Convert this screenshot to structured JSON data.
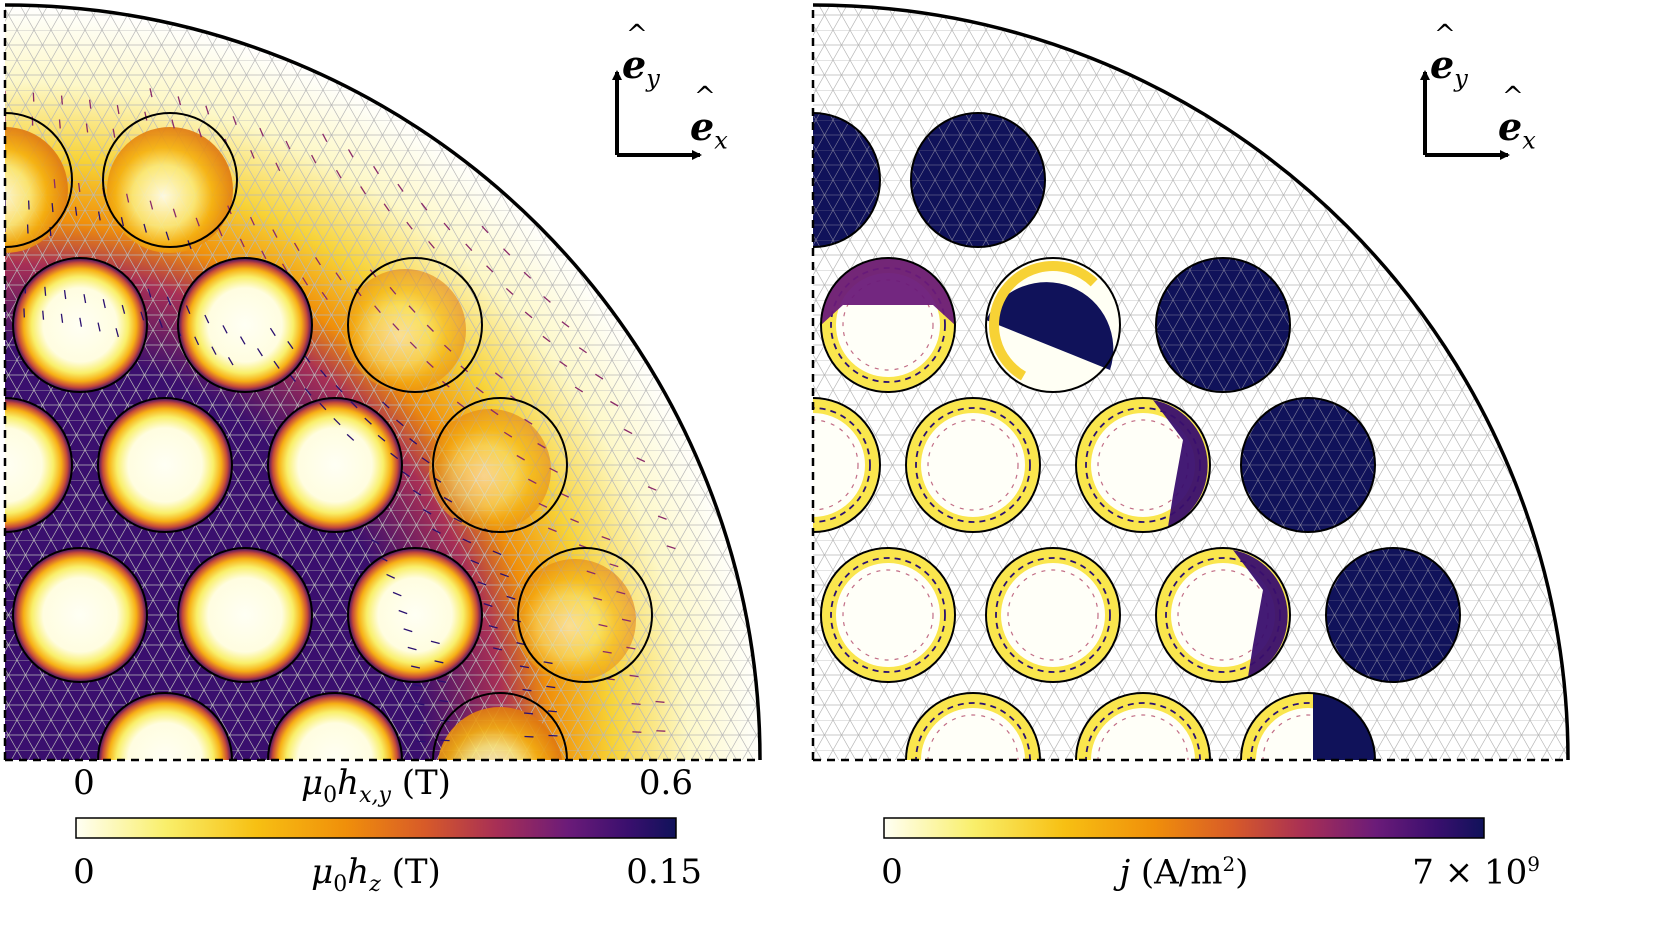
{
  "panels": [
    {
      "id": "left",
      "axis_labels": {
        "x_letter": "e",
        "x_sub": "x",
        "y_letter": "e",
        "y_sub": "y"
      }
    },
    {
      "id": "right",
      "axis_labels": {
        "x_letter": "e",
        "x_sub": "x",
        "y_letter": "e",
        "y_sub": "y"
      }
    }
  ],
  "colorbars": {
    "hxy": {
      "min_label": "0",
      "max_label": "0.6",
      "symbol": "μ",
      "sub0": "0",
      "var": "h",
      "var_sub": "x,y",
      "unit": "(T)"
    },
    "hz": {
      "min_label": "0",
      "max_label": "0.15",
      "symbol": "μ",
      "sub0": "0",
      "var": "h",
      "var_sub": "z",
      "unit": "(T)"
    },
    "j": {
      "min_label": "0",
      "max_label_base": "7 × 10",
      "max_label_exp": "9",
      "var": "j",
      "unit": "(A/m",
      "unit_exp": "2",
      "unit_close": ")"
    }
  },
  "colors": {
    "inferno_stops": [
      "#fffff4",
      "#f9ef6a",
      "#f7c013",
      "#f08f0a",
      "#d85b28",
      "#a82f55",
      "#6b1b79",
      "#3a0f6e",
      "#10125a"
    ],
    "background": "#ffffff",
    "mesh": "#b8b8b8"
  }
}
